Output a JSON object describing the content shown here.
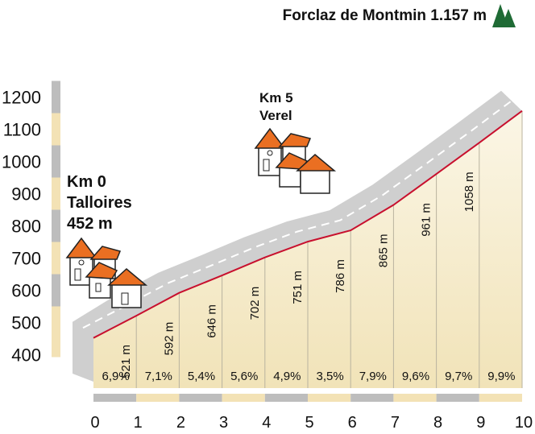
{
  "chart_data": {
    "type": "area",
    "title": "Forclaz de Montmin 1.157 m",
    "xlabel": "",
    "ylabel": "",
    "x_ticks": [
      "0",
      "1",
      "2",
      "3",
      "4",
      "5",
      "6",
      "7",
      "8",
      "9",
      "10"
    ],
    "y_ticks": [
      "400",
      "500",
      "600",
      "700",
      "800",
      "900",
      "1000",
      "1100",
      "1200"
    ],
    "xlim": [
      0,
      10
    ],
    "ylim": [
      400,
      1200
    ],
    "x": [
      0,
      1,
      2,
      3,
      4,
      5,
      6,
      7,
      8,
      9,
      10
    ],
    "elevation_m": [
      452,
      521,
      592,
      646,
      702,
      751,
      786,
      865,
      961,
      1058,
      1157
    ],
    "elevation_labels": [
      "521 m",
      "592 m",
      "646 m",
      "702 m",
      "751 m",
      "786 m",
      "865 m",
      "961 m",
      "1058 m"
    ],
    "gradients": [
      "6,9%",
      "7,1%",
      "5,4%",
      "5,6%",
      "4,9%",
      "3,5%",
      "7,9%",
      "9,6%",
      "9,7%",
      "9,9%"
    ],
    "start": {
      "km": "Km 0",
      "name": "Talloires",
      "alt": "452 m"
    },
    "waypoint": {
      "km": "Km 5",
      "name": "Verel"
    },
    "colors": {
      "profile_line": "#c8102e",
      "fill_top": "#fbf6e6",
      "fill_bottom": "#f1e3b8",
      "road": "#cfcfcf",
      "axis_gray": "#bdbdbd",
      "axis_beige": "#f3e2b5",
      "tree": "#1f6b35",
      "roof": "#ea6f22"
    }
  }
}
